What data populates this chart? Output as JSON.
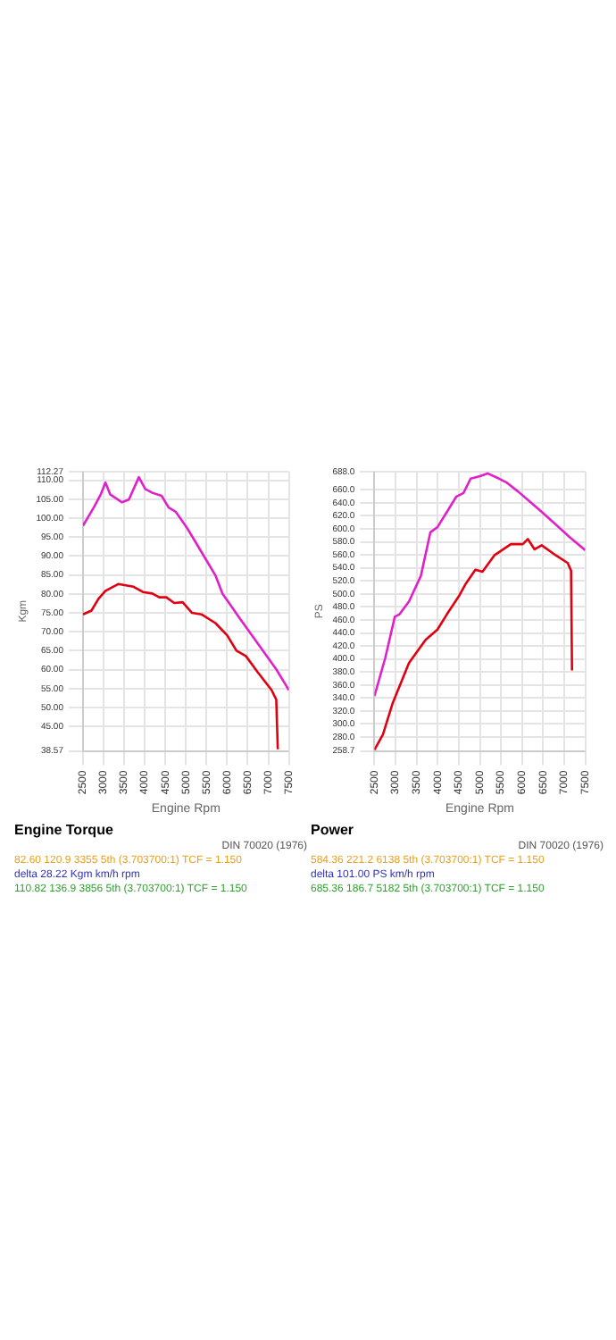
{
  "chart_data": [
    {
      "type": "line",
      "title": "Engine Torque",
      "xlabel": "Engine Rpm",
      "ylabel": "Kgm",
      "grid": true,
      "marker": "none",
      "line_style": "solid",
      "xlim": [
        2500,
        7500
      ],
      "xticks": [
        2500,
        3000,
        3500,
        4000,
        4500,
        5000,
        5500,
        6000,
        6500,
        7000,
        7500
      ],
      "ylim": [
        38.57,
        112.27
      ],
      "yticks": [
        {
          "value": 38.57,
          "label": "38.57"
        },
        {
          "value": 45,
          "label": "45.00"
        },
        {
          "value": 50,
          "label": "50.00"
        },
        {
          "value": 55,
          "label": "55.00"
        },
        {
          "value": 60,
          "label": "60.00"
        },
        {
          "value": 65,
          "label": "65.00"
        },
        {
          "value": 70,
          "label": "70.00"
        },
        {
          "value": 75,
          "label": "75.00"
        },
        {
          "value": 80,
          "label": "80.00"
        },
        {
          "value": 85,
          "label": "85.00"
        },
        {
          "value": 90,
          "label": "90.00"
        },
        {
          "value": 95,
          "label": "95.00"
        },
        {
          "value": 100,
          "label": "100.00"
        },
        {
          "value": 105,
          "label": "105.00"
        },
        {
          "value": 110,
          "label": "110.00"
        },
        {
          "value": 112.27,
          "label": "112.27"
        }
      ],
      "series": [
        {
          "color": "#e020c8",
          "x": [
            2500,
            2761,
            2932,
            3045,
            3159,
            3443,
            3614,
            3856,
            4011,
            4182,
            4409,
            4580,
            4750,
            5034,
            5375,
            5716,
            5886,
            6284,
            6739,
            7193,
            7500
          ],
          "values": [
            98.0,
            102.8,
            106.3,
            109.4,
            106.3,
            104.2,
            104.9,
            110.82,
            107.7,
            106.7,
            105.9,
            102.8,
            101.7,
            97.3,
            91.1,
            84.9,
            80.1,
            73.9,
            67.0,
            60.1,
            54.6
          ]
        },
        {
          "color": "#e00010",
          "x": [
            2500,
            2705,
            2875,
            3045,
            3355,
            3727,
            3955,
            4182,
            4352,
            4523,
            4716,
            4920,
            5148,
            5375,
            5716,
            6000,
            6227,
            6455,
            6739,
            7080,
            7193,
            7230
          ],
          "values": [
            74.6,
            75.6,
            78.7,
            80.8,
            82.6,
            81.9,
            80.5,
            80.1,
            79.1,
            79.1,
            77.6,
            77.8,
            75.0,
            74.6,
            72.3,
            69.1,
            65.0,
            63.6,
            59.4,
            54.6,
            52.1,
            39.0
          ]
        }
      ],
      "annotations": [
        "DIN 70020 (1976)",
        "82.60   120.9   3355   5th (3.703700:1) TCF = 1.150",
        "delta 28.22   Kgm   km/h   rpm",
        "110.82   136.9   3856   5th (3.703700:1) TCF = 1.150"
      ]
    },
    {
      "type": "line",
      "title": "Power",
      "xlabel": "Engine Rpm",
      "ylabel": "PS",
      "grid": true,
      "marker": "none",
      "line_style": "solid",
      "xlim": [
        2500,
        7500
      ],
      "xticks": [
        2500,
        3000,
        3500,
        4000,
        4500,
        5000,
        5500,
        6000,
        6500,
        7000,
        7500
      ],
      "ylim": [
        258.7,
        688
      ],
      "yticks": [
        {
          "value": 258.7,
          "label": "258.7"
        },
        {
          "value": 280,
          "label": "280.0"
        },
        {
          "value": 300,
          "label": "300.0"
        },
        {
          "value": 320,
          "label": "320.0"
        },
        {
          "value": 340,
          "label": "340.0"
        },
        {
          "value": 360,
          "label": "360.0"
        },
        {
          "value": 380,
          "label": "380.0"
        },
        {
          "value": 400,
          "label": "400.0"
        },
        {
          "value": 420,
          "label": "420.0"
        },
        {
          "value": 440,
          "label": "440.0"
        },
        {
          "value": 460,
          "label": "460.0"
        },
        {
          "value": 480,
          "label": "480.0"
        },
        {
          "value": 500,
          "label": "500.0"
        },
        {
          "value": 520,
          "label": "520.0"
        },
        {
          "value": 540,
          "label": "540.0"
        },
        {
          "value": 560,
          "label": "560.0"
        },
        {
          "value": 580,
          "label": "580.0"
        },
        {
          "value": 600,
          "label": "600.0"
        },
        {
          "value": 620,
          "label": "620.0"
        },
        {
          "value": 640,
          "label": "640.0"
        },
        {
          "value": 660,
          "label": "660.0"
        },
        {
          "value": 688,
          "label": "688.0"
        }
      ],
      "series": [
        {
          "color": "#e020c8",
          "x": [
            2500,
            2758,
            2983,
            3096,
            3320,
            3601,
            3826,
            3994,
            4219,
            4444,
            4612,
            4781,
            5006,
            5182,
            5455,
            5624,
            5904,
            6185,
            6466,
            6803,
            7140,
            7500
          ],
          "values": [
            342.9,
            401.9,
            464.9,
            468.8,
            488.5,
            527.8,
            594.7,
            602.6,
            626.2,
            649.8,
            655.3,
            677.3,
            681.2,
            685.36,
            677.3,
            671.8,
            657.6,
            641.9,
            626.2,
            606.5,
            586.8,
            567.2
          ]
        },
        {
          "color": "#e00010",
          "x": [
            2500,
            2702,
            2927,
            3320,
            3713,
            3994,
            4219,
            4500,
            4669,
            4893,
            5062,
            5343,
            5736,
            6017,
            6138,
            6298,
            6466,
            6803,
            7084,
            7163,
            7185
          ],
          "values": [
            260.3,
            283.9,
            331.1,
            394.1,
            429.5,
            445.2,
            468.8,
            496.3,
            516.0,
            537.3,
            534.1,
            559.3,
            576.6,
            576.6,
            584.36,
            568.6,
            574.9,
            559.3,
            547.5,
            535.7,
            382.3
          ]
        }
      ],
      "annotations": [
        "DIN 70020 (1976)",
        "584.36   221.2   6138   5th (3.703700:1) TCF = 1.150",
        "delta 101.00   PS   km/h   rpm",
        "685.36   186.7   5182   5th (3.703700:1) TCF = 1.150"
      ]
    }
  ]
}
